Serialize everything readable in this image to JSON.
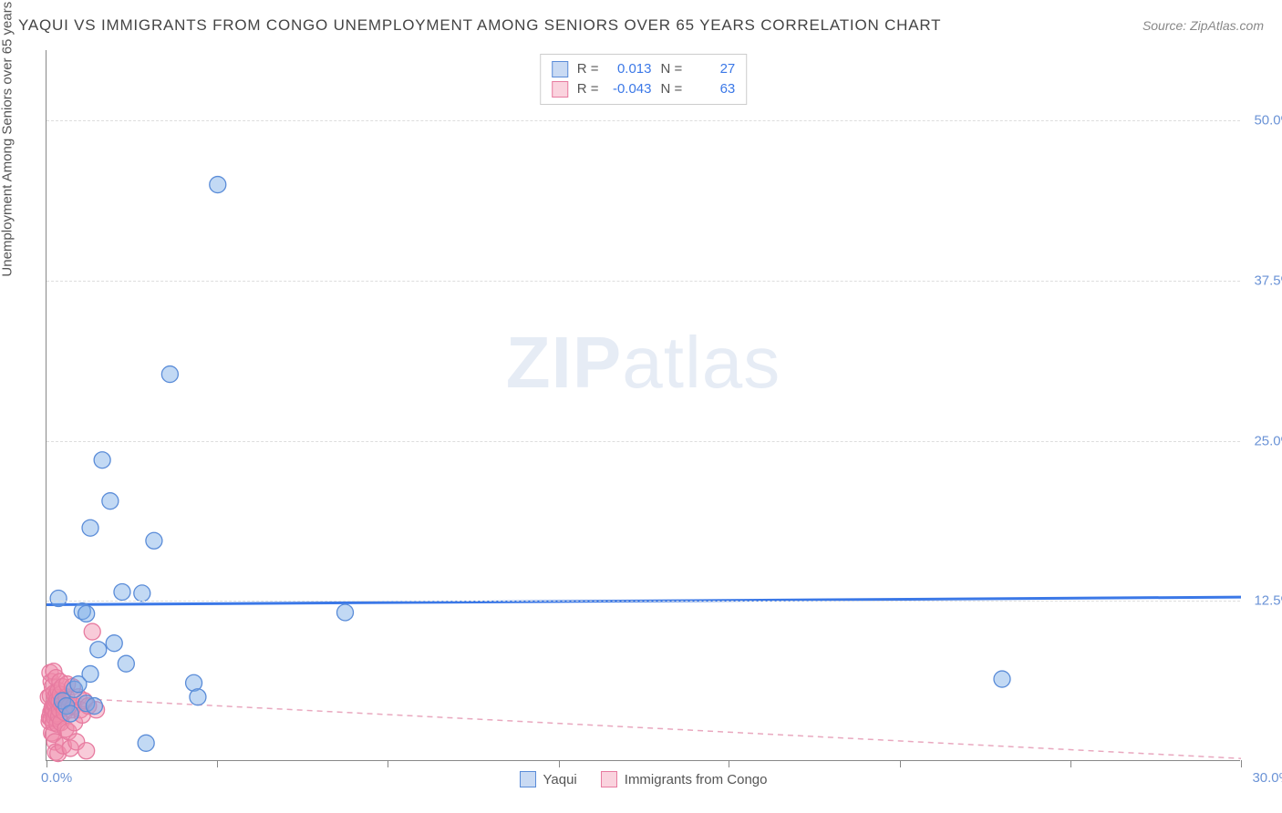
{
  "title": "YAQUI VS IMMIGRANTS FROM CONGO UNEMPLOYMENT AMONG SENIORS OVER 65 YEARS CORRELATION CHART",
  "source": "Source: ZipAtlas.com",
  "y_axis_label": "Unemployment Among Seniors over 65 years",
  "chart": {
    "type": "scatter",
    "background_color": "#ffffff",
    "grid_color": "#dddddd",
    "axis_color": "#888888",
    "xlim": [
      0,
      30
    ],
    "ylim": [
      0,
      55.5
    ],
    "x_ticks": [
      0,
      4.29,
      8.57,
      12.86,
      17.14,
      21.43,
      25.71,
      30
    ],
    "x_tick_labels_shown": {
      "min": "0.0%",
      "max": "30.0%"
    },
    "y_ticks": [
      12.5,
      25.0,
      37.5,
      50.0
    ],
    "y_tick_labels": [
      "12.5%",
      "25.0%",
      "37.5%",
      "50.0%"
    ],
    "marker_radius": 9,
    "series": [
      {
        "name": "Yaqui",
        "color_fill": "rgba(120,170,230,0.45)",
        "color_stroke": "#5a8cd8",
        "correlation_R": "0.013",
        "N": "27",
        "trend": {
          "y_at_x0": 12.2,
          "y_at_x30": 12.8,
          "style": "solid",
          "color": "#3b78e7",
          "width": 3
        },
        "points": [
          [
            0.3,
            12.7
          ],
          [
            0.4,
            4.7
          ],
          [
            0.5,
            4.3
          ],
          [
            0.6,
            3.7
          ],
          [
            0.7,
            5.6
          ],
          [
            0.8,
            6.0
          ],
          [
            0.9,
            11.7
          ],
          [
            1.0,
            11.5
          ],
          [
            1.0,
            4.5
          ],
          [
            1.1,
            18.2
          ],
          [
            1.1,
            6.8
          ],
          [
            1.2,
            4.3
          ],
          [
            1.3,
            8.7
          ],
          [
            1.4,
            23.5
          ],
          [
            1.6,
            20.3
          ],
          [
            1.7,
            9.2
          ],
          [
            1.9,
            13.2
          ],
          [
            2.0,
            7.6
          ],
          [
            2.4,
            13.1
          ],
          [
            2.5,
            1.4
          ],
          [
            2.7,
            17.2
          ],
          [
            3.1,
            30.2
          ],
          [
            3.7,
            6.1
          ],
          [
            3.8,
            5.0
          ],
          [
            4.3,
            45.0
          ],
          [
            7.5,
            11.6
          ],
          [
            24.0,
            6.4
          ]
        ]
      },
      {
        "name": "Immigrants from Congo",
        "color_fill": "rgba(240,140,170,0.45)",
        "color_stroke": "#e77ba0",
        "correlation_R": "-0.043",
        "N": "63",
        "trend": {
          "y_at_x0": 5.0,
          "y_at_x30": 0.2,
          "style": "dashed",
          "color": "#e9a8bf",
          "width": 1.5
        },
        "points": [
          [
            0.05,
            5.0
          ],
          [
            0.07,
            3.1
          ],
          [
            0.08,
            3.4
          ],
          [
            0.09,
            6.9
          ],
          [
            0.1,
            5.1
          ],
          [
            0.11,
            3.8
          ],
          [
            0.12,
            3.3
          ],
          [
            0.12,
            6.2
          ],
          [
            0.13,
            2.2
          ],
          [
            0.14,
            4.1
          ],
          [
            0.14,
            4.0
          ],
          [
            0.15,
            5.8
          ],
          [
            0.15,
            4.2
          ],
          [
            0.16,
            3.8
          ],
          [
            0.17,
            3.0
          ],
          [
            0.17,
            2.1
          ],
          [
            0.18,
            4.0
          ],
          [
            0.18,
            7.0
          ],
          [
            0.19,
            5.3
          ],
          [
            0.2,
            4.4
          ],
          [
            0.2,
            3.4
          ],
          [
            0.21,
            1.5
          ],
          [
            0.22,
            5.0
          ],
          [
            0.22,
            4.5
          ],
          [
            0.23,
            0.7
          ],
          [
            0.24,
            6.5
          ],
          [
            0.25,
            4.7
          ],
          [
            0.25,
            3.7
          ],
          [
            0.26,
            5.3
          ],
          [
            0.27,
            2.9
          ],
          [
            0.28,
            4.8
          ],
          [
            0.29,
            0.6
          ],
          [
            0.3,
            5.5
          ],
          [
            0.31,
            3.5
          ],
          [
            0.32,
            4.7
          ],
          [
            0.33,
            4.0
          ],
          [
            0.34,
            6.2
          ],
          [
            0.35,
            5.2
          ],
          [
            0.36,
            3.0
          ],
          [
            0.38,
            4.4
          ],
          [
            0.4,
            5.8
          ],
          [
            0.42,
            1.2
          ],
          [
            0.44,
            4.2
          ],
          [
            0.45,
            3.8
          ],
          [
            0.48,
            2.5
          ],
          [
            0.5,
            5.0
          ],
          [
            0.52,
            6.0
          ],
          [
            0.55,
            2.3
          ],
          [
            0.58,
            4.3
          ],
          [
            0.6,
            1.0
          ],
          [
            0.63,
            4.0
          ],
          [
            0.65,
            5.8
          ],
          [
            0.68,
            4.3
          ],
          [
            0.7,
            3.0
          ],
          [
            0.75,
            1.5
          ],
          [
            0.8,
            5.0
          ],
          [
            0.85,
            4.0
          ],
          [
            0.9,
            3.6
          ],
          [
            0.95,
            4.7
          ],
          [
            1.0,
            0.8
          ],
          [
            1.05,
            4.3
          ],
          [
            1.15,
            10.1
          ],
          [
            1.25,
            4.0
          ]
        ]
      }
    ]
  },
  "watermark": {
    "strong": "ZIP",
    "rest": "atlas"
  },
  "legend_labels": {
    "yaqui": "Yaqui",
    "congo": "Immigrants from Congo"
  },
  "stats_labels": {
    "R": "R =",
    "N": "N ="
  }
}
